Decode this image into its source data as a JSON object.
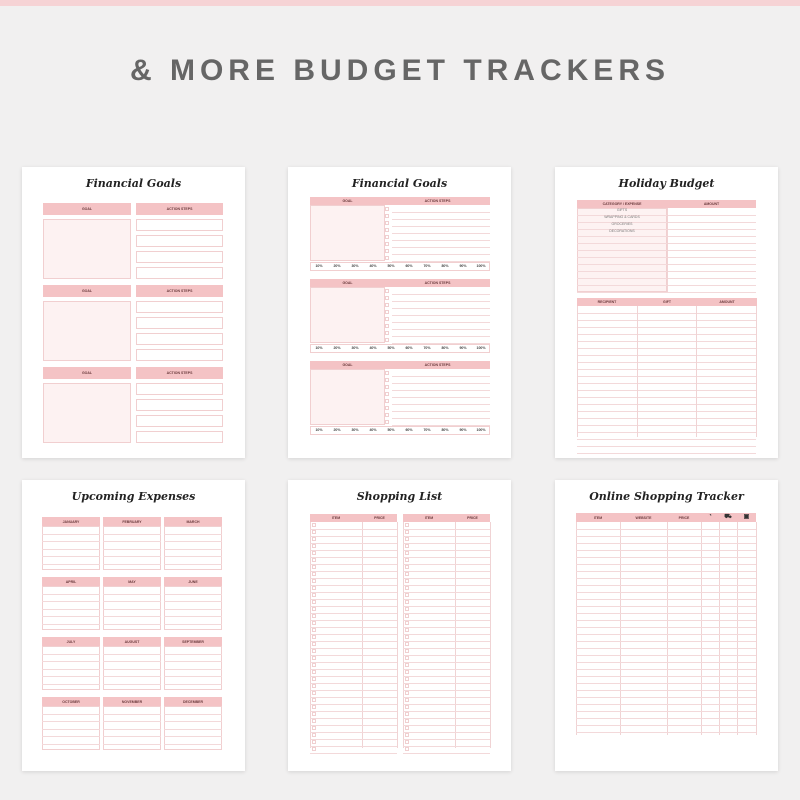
{
  "heading": "& MORE BUDGET TRACKERS",
  "colors": {
    "accent": "#f4c3c5",
    "top_bar": "#f6d3d5",
    "heading": "#666666"
  },
  "cards": {
    "financial_goals_1": {
      "title": "Financial Goals",
      "goal_label": "GOAL",
      "action_label": "ACTION STEPS"
    },
    "financial_goals_2": {
      "title": "Financial Goals",
      "goal_label": "GOAL",
      "action_label": "ACTION STEPS",
      "percents": [
        "10%",
        "20%",
        "30%",
        "40%",
        "50%",
        "60%",
        "70%",
        "80%",
        "90%",
        "100%"
      ]
    },
    "holiday_budget": {
      "title": "Holiday Budget",
      "table1_headers": [
        "CATEGORY / EXPENSE",
        "AMOUNT"
      ],
      "categories": [
        "GIFTS",
        "WRAPPING & CARDS",
        "GROCERIES",
        "DECORATIONS"
      ],
      "table2_headers": [
        "RECIPIENT",
        "GIFT",
        "AMOUNT"
      ]
    },
    "upcoming_expenses": {
      "title": "Upcoming Expenses",
      "months": [
        "JANUARY",
        "FEBRUARY",
        "MARCH",
        "APRIL",
        "MAY",
        "JUNE",
        "JULY",
        "AUGUST",
        "SEPTEMBER",
        "OCTOBER",
        "NOVEMBER",
        "DECEMBER"
      ]
    },
    "shopping_list": {
      "title": "Shopping List",
      "headers": [
        "ITEM",
        "PRICE"
      ]
    },
    "online_shopping_tracker": {
      "title": "Online Shopping Tracker",
      "headers": [
        "ITEM",
        "WEBSITE",
        "PRICE"
      ],
      "icons": [
        "order-bag-icon",
        "shipping-truck-icon",
        "delivered-box-icon"
      ]
    }
  }
}
